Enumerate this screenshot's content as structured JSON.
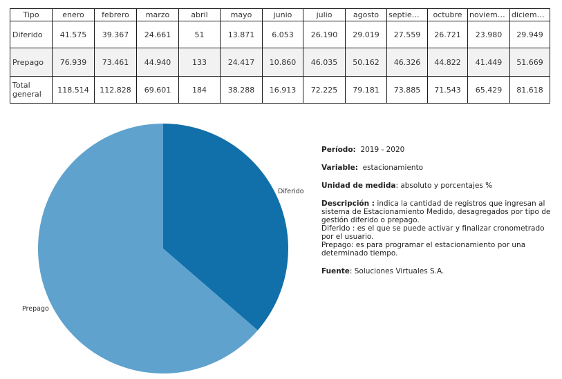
{
  "colors": {
    "diferido": "#1170aa",
    "prepago": "#5fa2ce",
    "border": "#1a1a1a",
    "alt_row": "#f2f2f2"
  },
  "table": {
    "headers": [
      "Tipo",
      "enero",
      "febrero",
      "marzo",
      "abril",
      "mayo",
      "junio",
      "julio",
      "agosto",
      "septiemb..",
      "octubre",
      "noviembre",
      "diciembre"
    ],
    "rows": [
      {
        "label": "Diferido",
        "values": [
          "41.575",
          "39.367",
          "24.661",
          "51",
          "13.871",
          "6.053",
          "26.190",
          "29.019",
          "27.559",
          "26.721",
          "23.980",
          "29.949"
        ]
      },
      {
        "label": "Prepago",
        "values": [
          "76.939",
          "73.461",
          "44.940",
          "133",
          "24.417",
          "10.860",
          "46.035",
          "50.162",
          "46.326",
          "44.822",
          "41.449",
          "51.669"
        ]
      },
      {
        "label": "Total general",
        "values": [
          "118.514",
          "112.828",
          "69.601",
          "184",
          "38.288",
          "16.913",
          "72.225",
          "79.181",
          "73.885",
          "71.543",
          "65.429",
          "81.618"
        ]
      }
    ]
  },
  "chart_data": {
    "type": "pie",
    "categories": [
      "Diferido",
      "Prepago"
    ],
    "values": [
      318316,
      557213
    ],
    "label_texts": [
      "Diferido",
      "Prepago"
    ]
  },
  "info": {
    "periodo_label": "Período:",
    "periodo_value": "2019 - 2020",
    "variable_label": "Variable:",
    "variable_value": "estacionamiento",
    "unidad_label": "Unidad de medida",
    "unidad_value": ": absoluto y porcentajes %",
    "descripcion_label": "Descripción :",
    "descripcion_value": "indica la cantidad de registros que ingresan al sistema de Estacionamiento Medido, desagregados por tipo de gestión diferido o prepago.",
    "diferido_text": "Diferido : es el que se puede activar y finalizar cronometrado por el usuario.",
    "prepago_text": "Prepago: es para programar el estacionamiento por una determinado tiempo.",
    "fuente_label": "Fuente",
    "fuente_value": ": Soluciones Virtuales S.A."
  }
}
